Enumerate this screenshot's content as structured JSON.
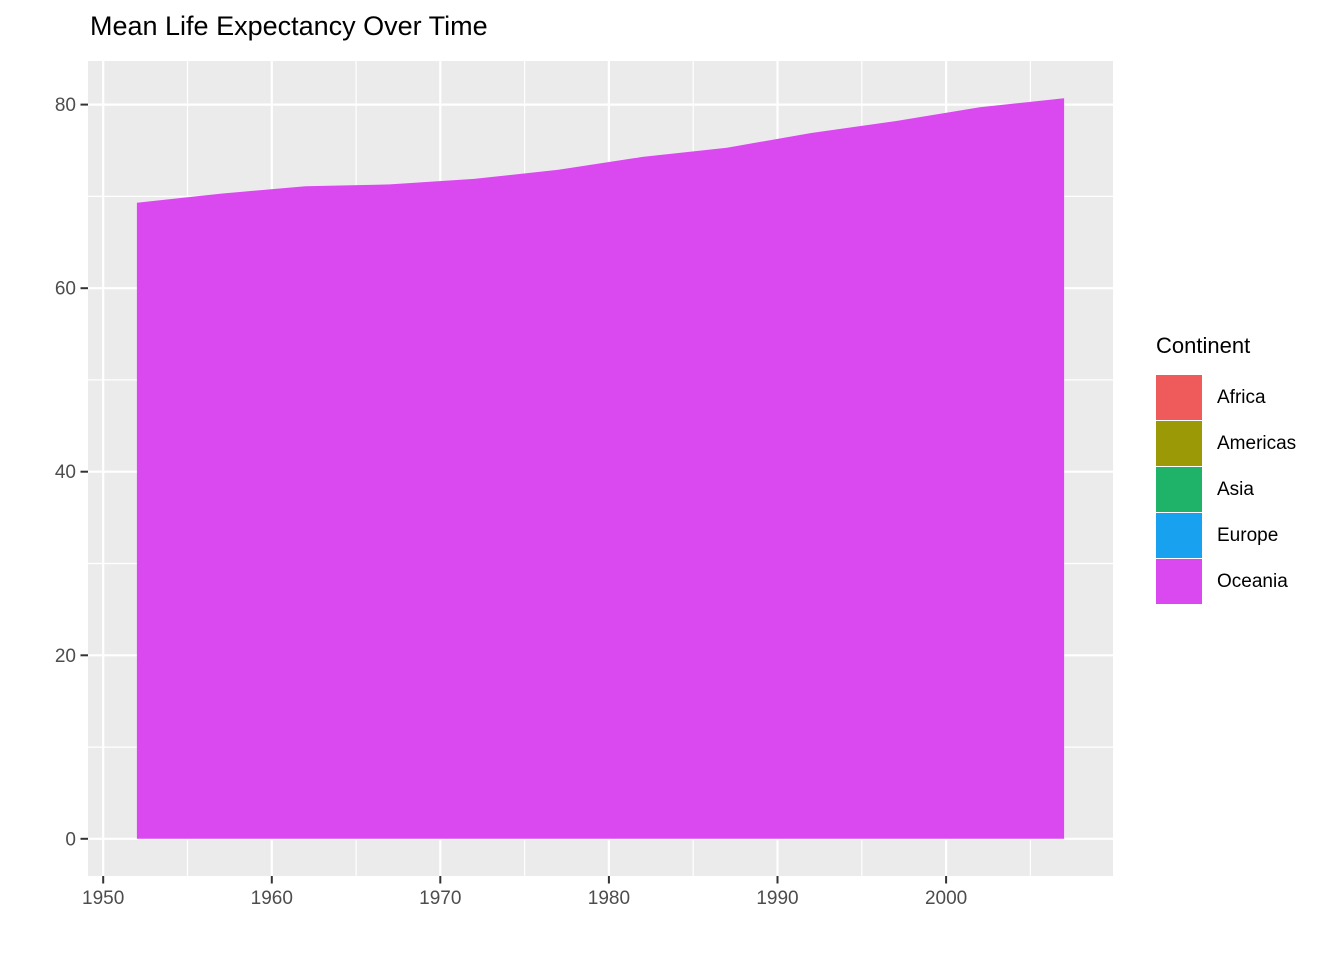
{
  "chart_data": {
    "type": "area",
    "title": "Mean Life Expectancy Over Time",
    "xlabel": "",
    "ylabel": "",
    "x": [
      1952,
      1957,
      1962,
      1967,
      1972,
      1977,
      1982,
      1987,
      1992,
      1997,
      2002,
      2007
    ],
    "series": [
      {
        "name": "Oceania",
        "color": "#DA49EF",
        "values": [
          69.3,
          70.3,
          71.1,
          71.3,
          71.9,
          72.9,
          74.3,
          75.3,
          76.9,
          78.2,
          79.7,
          80.7
        ]
      }
    ],
    "baseline": 0,
    "x_ticks": [
      1950,
      1960,
      1970,
      1980,
      1990,
      2000
    ],
    "x_minor_ticks": [
      1955,
      1965,
      1975,
      1985,
      1995,
      2005
    ],
    "y_ticks": [
      0,
      20,
      40,
      60,
      80
    ],
    "y_minor_ticks": [
      10,
      30,
      50,
      70
    ],
    "xlim": [
      1949.1,
      2009.9
    ],
    "ylim": [
      -4.05,
      84.75
    ],
    "grid": true,
    "legend_position": "right",
    "panel_background": "#EBEBEB",
    "grid_color": "#FFFFFF",
    "tick_color": "#333333",
    "tick_label_color": "#4D4D4D"
  },
  "legend": {
    "title": "Continent",
    "items": [
      {
        "label": "Africa",
        "color": "#EF5B5B"
      },
      {
        "label": "Americas",
        "color": "#9B9A06"
      },
      {
        "label": "Asia",
        "color": "#1FB269"
      },
      {
        "label": "Europe",
        "color": "#17A1EF"
      },
      {
        "label": "Oceania",
        "color": "#DA49EF"
      }
    ]
  }
}
